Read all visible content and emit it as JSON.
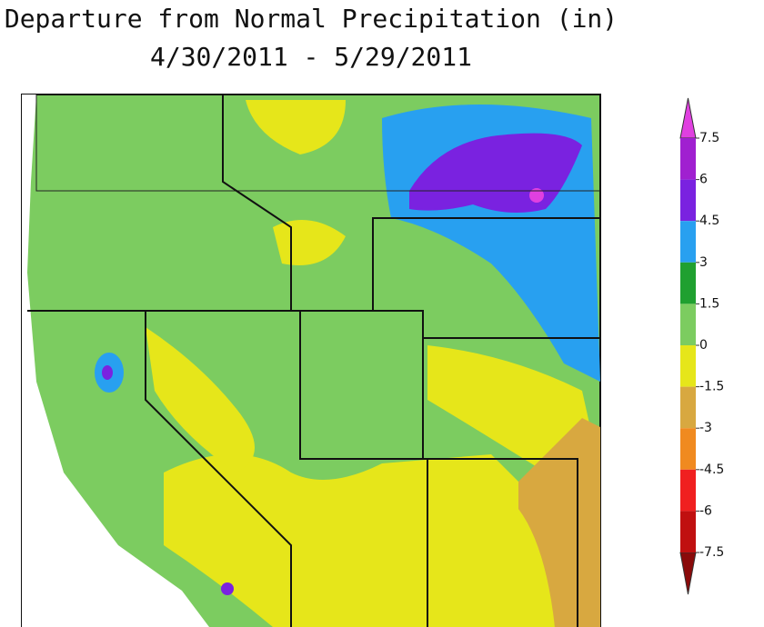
{
  "header": {
    "title": "Departure from Normal Precipitation (in)",
    "subtitle": "4/30/2011 - 5/29/2011"
  },
  "legend": {
    "ticks": [
      7.5,
      6,
      4.5,
      3,
      1.5,
      0,
      -1.5,
      -3,
      -4.5,
      -6,
      -7.5
    ],
    "colors": [
      "#e040e0",
      "#a020d0",
      "#7a22e0",
      "#28a0f0",
      "#20a030",
      "#7ccc60",
      "#e6e61a",
      "#d8a840",
      "#f08a20",
      "#f02020",
      "#c01010",
      "#8a0a0a"
    ]
  }
}
